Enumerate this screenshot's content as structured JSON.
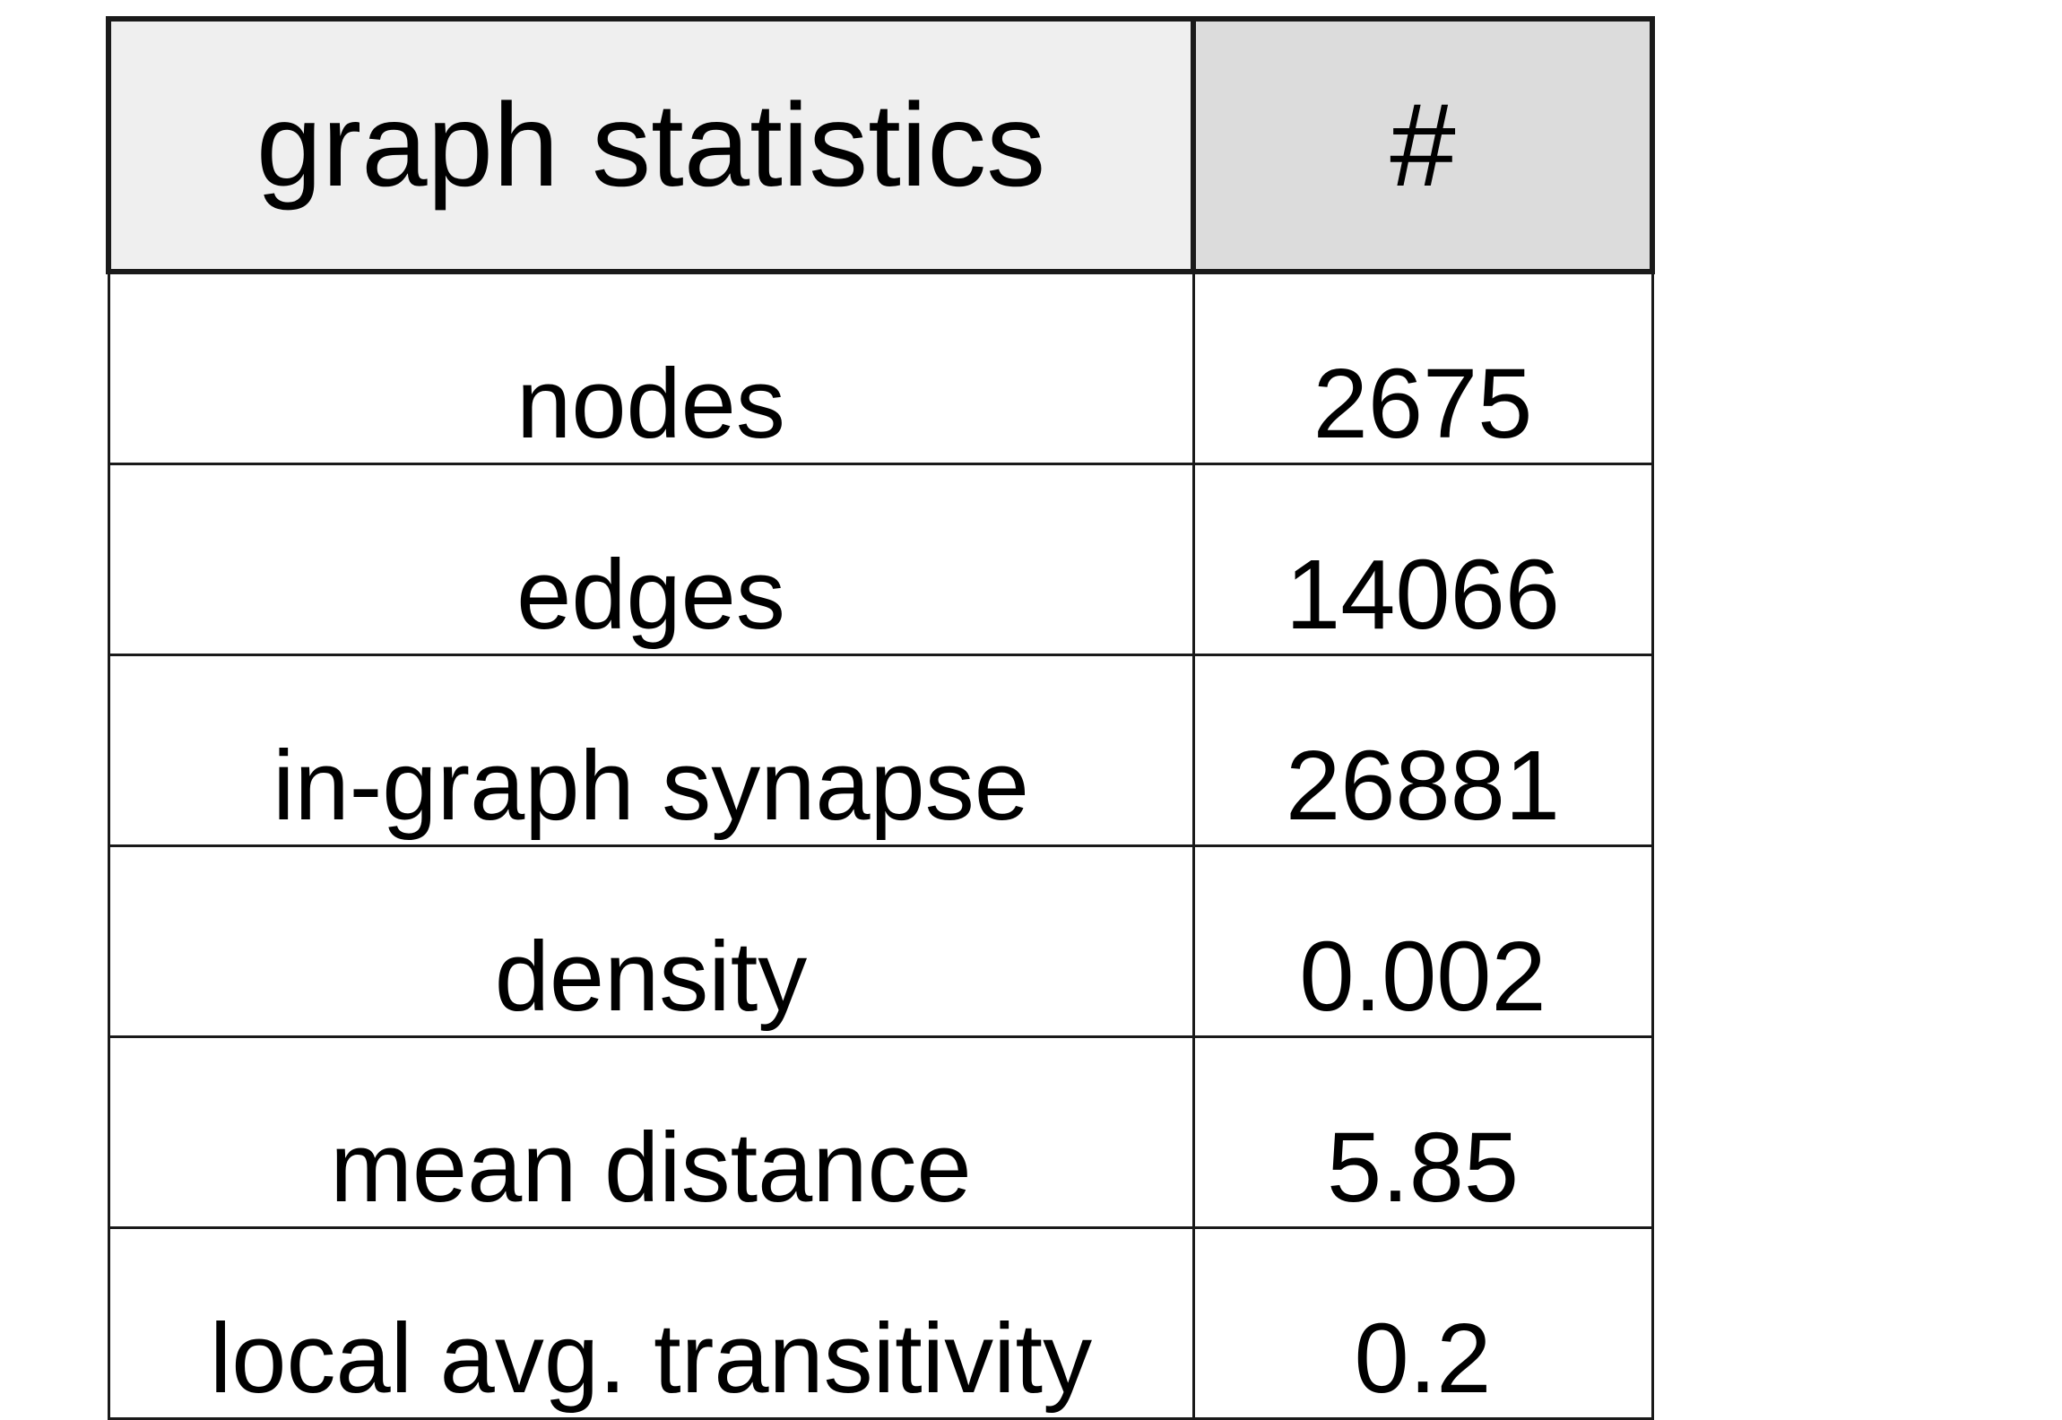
{
  "table": {
    "headers": {
      "label": "graph statistics",
      "value": "#"
    },
    "rows": [
      {
        "label": "nodes",
        "value": "2675"
      },
      {
        "label": "edges",
        "value": "14066"
      },
      {
        "label": "in-graph synapse",
        "value": "26881"
      },
      {
        "label": "density",
        "value": "0.002"
      },
      {
        "label": "mean distance",
        "value": "5.85"
      },
      {
        "label": "local avg. transitivity",
        "value": "0.2"
      }
    ]
  }
}
